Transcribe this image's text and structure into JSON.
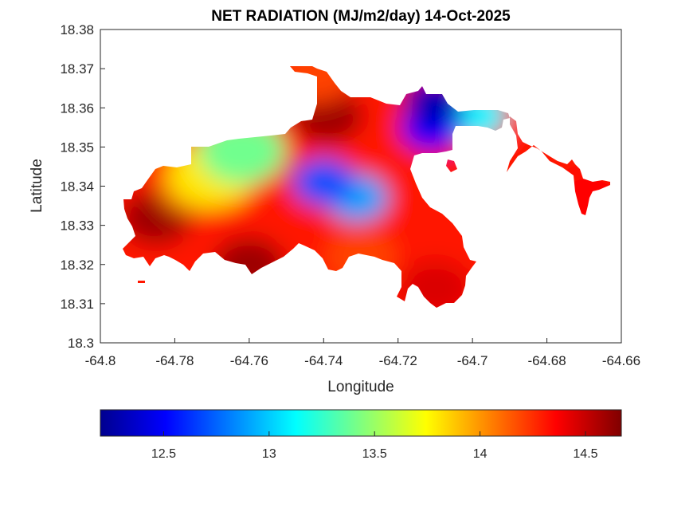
{
  "chart_data": {
    "type": "heatmap",
    "subtype": "filled-contour-map",
    "title": "NET RADIATION (MJ/m2/day) 14-Oct-2025",
    "xlabel": "Longitude",
    "ylabel": "Latitude",
    "xlim": [
      -64.8,
      -64.66
    ],
    "ylim": [
      18.3,
      18.38
    ],
    "xticks": [
      -64.8,
      -64.78,
      -64.76,
      -64.74,
      -64.72,
      -64.7,
      -64.68,
      -64.66
    ],
    "xtick_labels": [
      "-64.8",
      "-64.78",
      "-64.76",
      "-64.74",
      "-64.72",
      "-64.7",
      "-64.68",
      "-64.66"
    ],
    "yticks": [
      18.3,
      18.31,
      18.32,
      18.33,
      18.34,
      18.35,
      18.36,
      18.37,
      18.38
    ],
    "ytick_labels": [
      "18.3",
      "18.31",
      "18.32",
      "18.33",
      "18.34",
      "18.35",
      "18.36",
      "18.37",
      "18.38"
    ],
    "grid": false,
    "colormap": "jet",
    "colorbar": {
      "orientation": "horizontal",
      "placement": "bottom",
      "clim": [
        12.2,
        14.67
      ],
      "ticks": [
        12.5,
        13,
        13.5,
        14,
        14.5
      ],
      "tick_labels": [
        "12.5",
        "13",
        "13.5",
        "14",
        "14.5"
      ]
    },
    "field_features": [
      {
        "name": "western-high",
        "lon": -64.785,
        "lat": 18.332,
        "value": 14.6
      },
      {
        "name": "southwest-high",
        "lon": -64.76,
        "lat": 18.32,
        "value": 14.6
      },
      {
        "name": "north-coast-high",
        "lon": -64.739,
        "lat": 18.358,
        "value": 14.6
      },
      {
        "name": "central-low",
        "lon": -64.74,
        "lat": 18.341,
        "value": 12.7
      },
      {
        "name": "central-low-2",
        "lon": -64.731,
        "lat": 18.337,
        "value": 12.9
      },
      {
        "name": "northeast-low",
        "lon": -64.71,
        "lat": 18.362,
        "value": 12.3
      },
      {
        "name": "northeast-low-2",
        "lon": -64.711,
        "lat": 18.355,
        "value": 12.5
      },
      {
        "name": "east-spit",
        "lon": -64.699,
        "lat": 18.358,
        "value": 13.1
      },
      {
        "name": "green-mid",
        "lon": -64.762,
        "lat": 18.349,
        "value": 13.4
      },
      {
        "name": "yellow-band",
        "lon": -64.77,
        "lat": 18.343,
        "value": 13.8
      },
      {
        "name": "south-central",
        "lon": -64.73,
        "lat": 18.322,
        "value": 14.2
      },
      {
        "name": "southeast-tip",
        "lon": -64.71,
        "lat": 18.314,
        "value": 14.45
      },
      {
        "name": "far-east-islet",
        "lon": -64.669,
        "lat": 18.337,
        "value": 14.35
      },
      {
        "name": "orange-west",
        "lon": -64.775,
        "lat": 18.34,
        "value": 14.05
      },
      {
        "name": "north-inlet-orange",
        "lon": -64.742,
        "lat": 18.368,
        "value": 14.2
      }
    ]
  }
}
